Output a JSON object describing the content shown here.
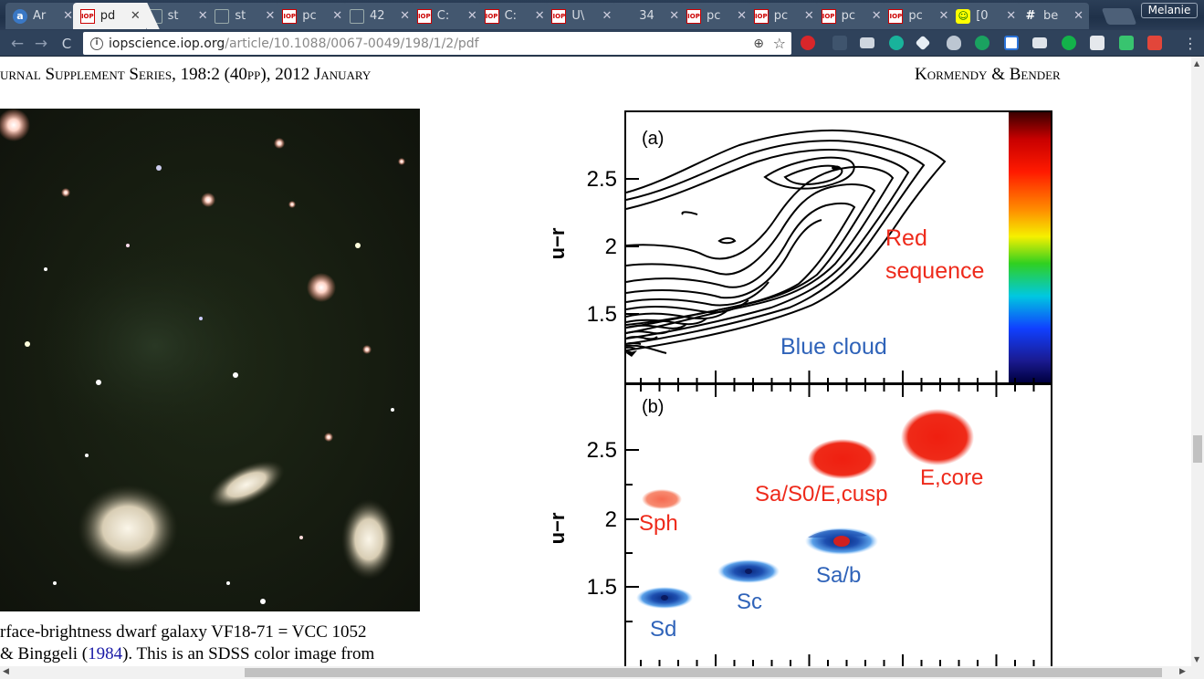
{
  "browser": {
    "tabs": [
      {
        "favicon": "amazon-icon",
        "label": "Ar",
        "active": false
      },
      {
        "favicon": "iop-icon",
        "label": "pd",
        "active": true
      },
      {
        "favicon": "document-icon",
        "label": "st",
        "active": false
      },
      {
        "favicon": "document-icon",
        "label": "st",
        "active": false
      },
      {
        "favicon": "iop-icon",
        "label": "pc",
        "active": false
      },
      {
        "favicon": "document-icon",
        "label": "42",
        "active": false
      },
      {
        "favicon": "iop-icon",
        "label": "C:",
        "active": false
      },
      {
        "favicon": "iop-icon",
        "label": "C:",
        "active": false
      },
      {
        "favicon": "iop-icon",
        "label": "U\\",
        "active": false
      },
      {
        "favicon": "blank-icon",
        "label": "34",
        "active": false
      },
      {
        "favicon": "iop-icon",
        "label": "pc",
        "active": false
      },
      {
        "favicon": "iop-icon",
        "label": "pc",
        "active": false
      },
      {
        "favicon": "iop-icon",
        "label": "pc",
        "active": false
      },
      {
        "favicon": "iop-icon",
        "label": "pc",
        "active": false
      },
      {
        "favicon": "smiley-icon",
        "label": "[0",
        "active": false
      },
      {
        "favicon": "hash-icon",
        "label": "be",
        "active": false
      }
    ],
    "close_glyph": "✕",
    "profile_name": "Melanie",
    "iop_badge": "IOP",
    "url_host": "iopscience.iop.org",
    "url_path": "/article/10.1088/0067-0049/198/1/2/pdf",
    "back_glyph": "←",
    "forward_glyph": "→",
    "reload_glyph": "C",
    "info_glyph": "i",
    "zoom_glyph": "⊕",
    "star_glyph": "☆",
    "menu_glyph": "⋮"
  },
  "page": {
    "running_head_left": "urnal Supplement Series, 198:2 (40pp), 2012 January",
    "running_head_right": "Kormendy & Bender",
    "caption_line1": "rface-brightness dwarf galaxy VF18-71 = VCC 1052",
    "caption_line2_pre": "& Binggeli (",
    "caption_line2_link": "1984",
    "caption_line2_post": "). This is an SDSS color image from"
  },
  "figure": {
    "panel_a_label": "(a)",
    "panel_b_label": "(b)",
    "ylabel": "u−r",
    "yticks": [
      "2.5",
      "2",
      "1.5"
    ],
    "annotations_a": {
      "red_line1": "Red",
      "red_line2": "sequence",
      "blue": "Blue cloud"
    },
    "annotations_b": {
      "sph": "Sph",
      "sa_s0": "Sa/S0/E,cusp",
      "ecore": "E,core",
      "sab": "Sa/b",
      "sc": "Sc",
      "sd": "Sd"
    },
    "colors": {
      "red": "#ee2a1b",
      "blue": "#2f63b9"
    }
  }
}
